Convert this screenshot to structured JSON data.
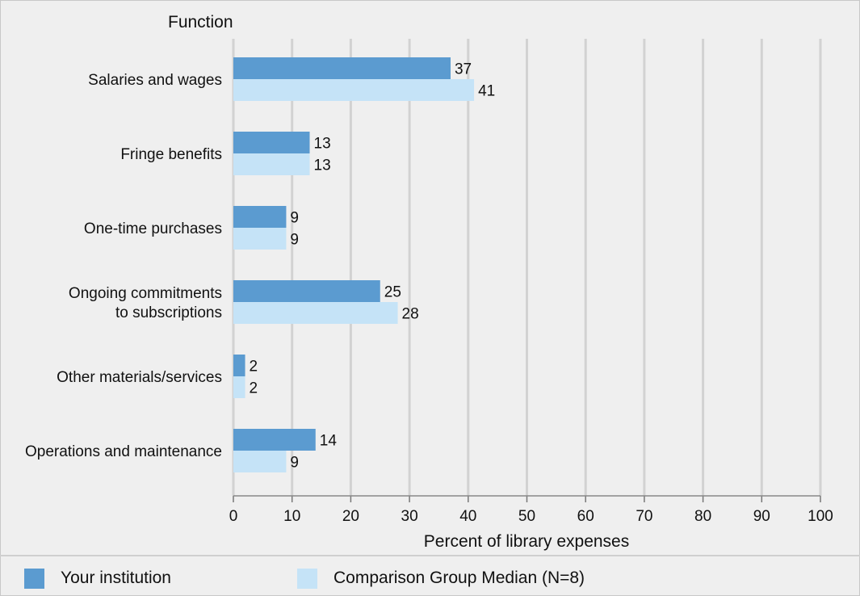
{
  "chart_data": {
    "type": "bar",
    "orientation": "horizontal",
    "title": "Function",
    "xlabel": "Percent of library expenses",
    "xlim": [
      0,
      100
    ],
    "xticks": [
      0,
      10,
      20,
      30,
      40,
      50,
      60,
      70,
      80,
      90,
      100
    ],
    "grid": true,
    "categories": [
      [
        "Salaries and wages"
      ],
      [
        "Fringe benefits"
      ],
      [
        "One-time purchases"
      ],
      [
        "Ongoing commitments",
        "to subscriptions"
      ],
      [
        "Other materials/services"
      ],
      [
        "Operations and maintenance"
      ]
    ],
    "series": [
      {
        "name": "Your institution",
        "color": "#5b9bd0",
        "values": [
          37,
          13,
          9,
          25,
          2,
          14
        ]
      },
      {
        "name": "Comparison Group Median (N=8)",
        "color": "#c5e3f7",
        "values": [
          41,
          13,
          9,
          28,
          2,
          9
        ]
      }
    ],
    "legend_position": "bottom"
  }
}
